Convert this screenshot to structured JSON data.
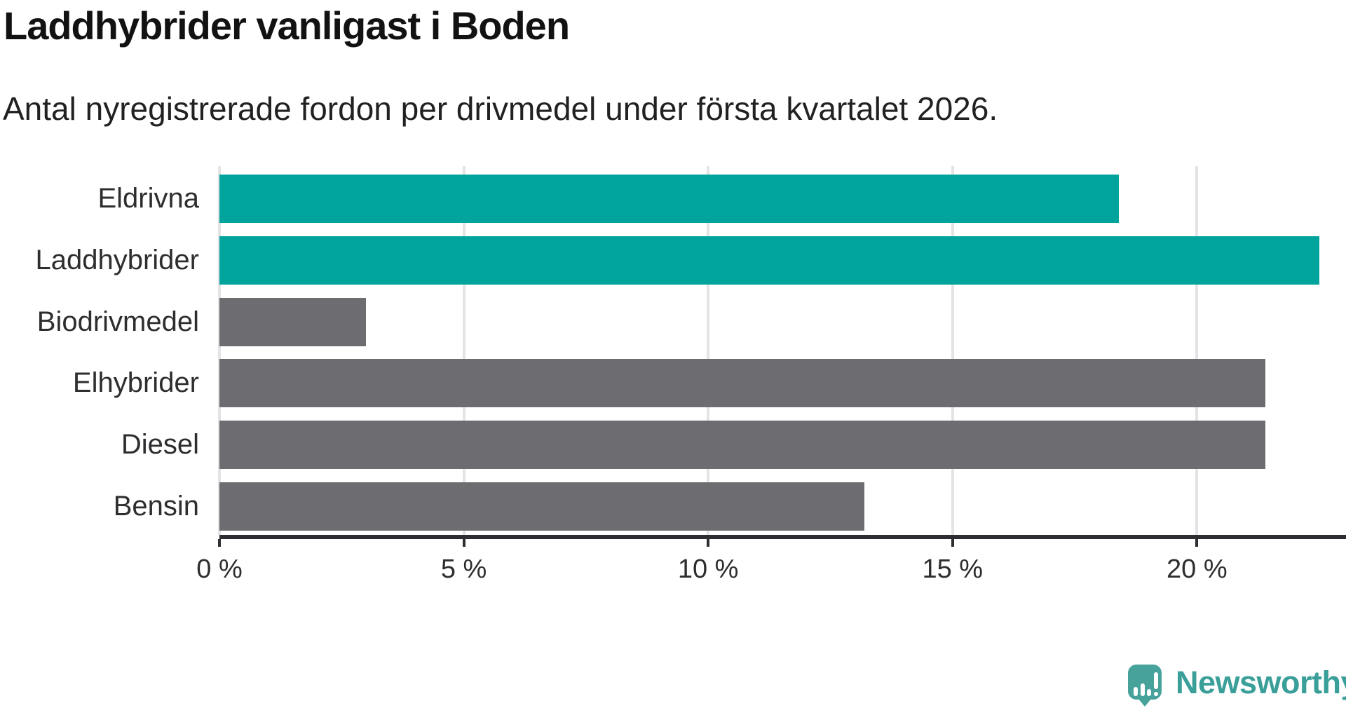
{
  "title": "Laddhybrider vanligast i Boden",
  "subtitle": "Antal nyregistrerade fordon per drivmedel under första kvartalet 2026.",
  "chart_data": {
    "type": "bar",
    "orientation": "horizontal",
    "title": "Laddhybrider vanligast i Boden",
    "subtitle": "Antal nyregistrerade fordon per drivmedel under första kvartalet 2026.",
    "categories": [
      "Eldrivna",
      "Laddhybrider",
      "Biodrivmedel",
      "Elhybrider",
      "Diesel",
      "Bensin"
    ],
    "values": [
      18.4,
      22.5,
      3.0,
      21.4,
      21.4,
      13.2
    ],
    "value_unit": "%",
    "xlabel": "",
    "ylabel": "",
    "xlim": [
      0,
      23.05
    ],
    "x_ticks": [
      {
        "value": 0,
        "label": "0 %"
      },
      {
        "value": 5,
        "label": "5 %"
      },
      {
        "value": 10,
        "label": "10 %"
      },
      {
        "value": 15,
        "label": "15 %"
      },
      {
        "value": 20,
        "label": "20 %"
      }
    ],
    "grid": "vertical-light",
    "legend": "none",
    "colors": {
      "highlight": "#00a49c",
      "default": "#6c6c71",
      "bar_colors": [
        "#00a49c",
        "#00a49c",
        "#6c6c71",
        "#6c6c71",
        "#6c6c71",
        "#6c6c71"
      ],
      "gridline": "#e4e4e6",
      "axis_line": "#2e2e32",
      "text": "#2e2e31"
    }
  },
  "branding": {
    "logo_text": "Newsworthy",
    "logo_text_color": "#3a9f99",
    "logo_mark_color": "#48a29c",
    "logo_icon": "bar-chart-exclamation-bubble-icon"
  }
}
